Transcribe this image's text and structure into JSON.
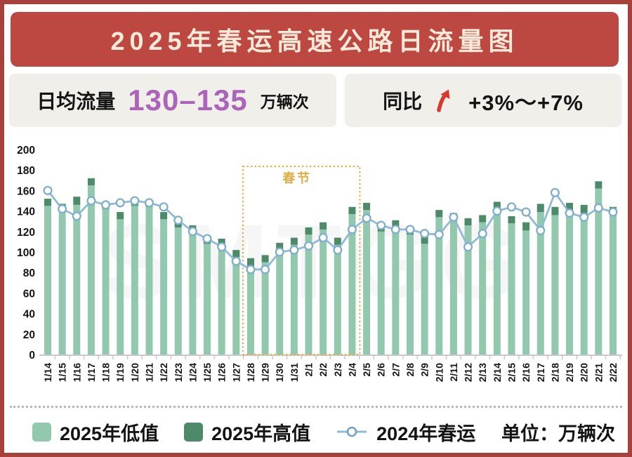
{
  "header": {
    "title": "2025年春运高速公路日流量图"
  },
  "stats": {
    "daily_volume": {
      "label": "日均流量",
      "value": "130–135",
      "unit": "万辆次"
    },
    "yoy": {
      "label": "同比",
      "arrow_icon": "trend-up-arrow",
      "value": "+3%～+7%"
    }
  },
  "chart_data": {
    "type": "bar",
    "subtype": "range-bars-with-line-overlay",
    "title": "2025年春运高速公路日流量图",
    "xlabel": "",
    "ylabel": "",
    "unit_note": "单位：万辆次",
    "ylim": [
      0,
      200
    ],
    "yticks": [
      0,
      20,
      40,
      60,
      80,
      100,
      120,
      140,
      160,
      180,
      200
    ],
    "grid": false,
    "legend_position": "bottom",
    "categories": [
      "1/14",
      "1/15",
      "1/16",
      "1/17",
      "1/18",
      "1/19",
      "1/20",
      "1/21",
      "1/22",
      "1/23",
      "1/24",
      "1/25",
      "1/26",
      "1/27",
      "1/28",
      "1/29",
      "1/30",
      "1/31",
      "2/1",
      "2/2",
      "2/3",
      "2/4",
      "2/5",
      "2/6",
      "2/7",
      "2/8",
      "2/9",
      "2/10",
      "2/11",
      "2/12",
      "2/13",
      "2/14",
      "2/15",
      "2/16",
      "2/17",
      "2/18",
      "2/19",
      "2/20",
      "2/21",
      "2/22"
    ],
    "series": [
      {
        "name": "2025年低值",
        "type": "bar",
        "color": "#92C9AE",
        "values": [
          145,
          140,
          146,
          165,
          142,
          132,
          145,
          144,
          132,
          124,
          118,
          108,
          106,
          95,
          86,
          90,
          102,
          107,
          117,
          122,
          107,
          137,
          141,
          120,
          123,
          117,
          108,
          134,
          130,
          126,
          129,
          141,
          128,
          121,
          139,
          136,
          141,
          138,
          162,
          136
        ]
      },
      {
        "name": "2025年高值",
        "type": "bar",
        "color": "#4C8A69",
        "values": [
          152,
          147,
          154,
          172,
          149,
          139,
          152,
          151,
          139,
          131,
          126,
          115,
          113,
          102,
          94,
          97,
          109,
          114,
          124,
          129,
          114,
          144,
          148,
          127,
          131,
          125,
          116,
          141,
          138,
          133,
          136,
          149,
          135,
          129,
          147,
          144,
          148,
          146,
          169,
          144
        ]
      },
      {
        "name": "2024年春运",
        "type": "line",
        "color": "#90BAD5",
        "values": [
          160,
          142,
          135,
          150,
          146,
          148,
          150,
          148,
          144,
          131,
          120,
          113,
          105,
          91,
          83,
          83,
          100,
          102,
          106,
          114,
          102,
          122,
          133,
          126,
          122,
          122,
          118,
          117,
          134,
          105,
          118,
          140,
          144,
          139,
          121,
          158,
          138,
          134,
          143,
          139
        ]
      }
    ],
    "annotation": {
      "label": "春节",
      "from": "1/28",
      "to": "2/4",
      "color": "#DCAE45"
    }
  },
  "legend": {
    "items": [
      {
        "label": "2025年低值",
        "swatch": "#92C9AE",
        "marker": "square"
      },
      {
        "label": "2025年高值",
        "swatch": "#4C8A69",
        "marker": "square"
      },
      {
        "label": "2024年春运",
        "swatch": "#90BAD5",
        "marker": "line-circle"
      }
    ],
    "unit_note": "单位：万辆次"
  },
  "colors": {
    "frame_border": "#A6413C",
    "banner_bg": "#BD4842",
    "banner_text": "#F9E9D8",
    "panel_bg": "#F1EFEA",
    "purple_value": "#AC64BA",
    "arrow_red": "#D63A2F",
    "axis": "#C9C9C9",
    "text": "#141414"
  }
}
